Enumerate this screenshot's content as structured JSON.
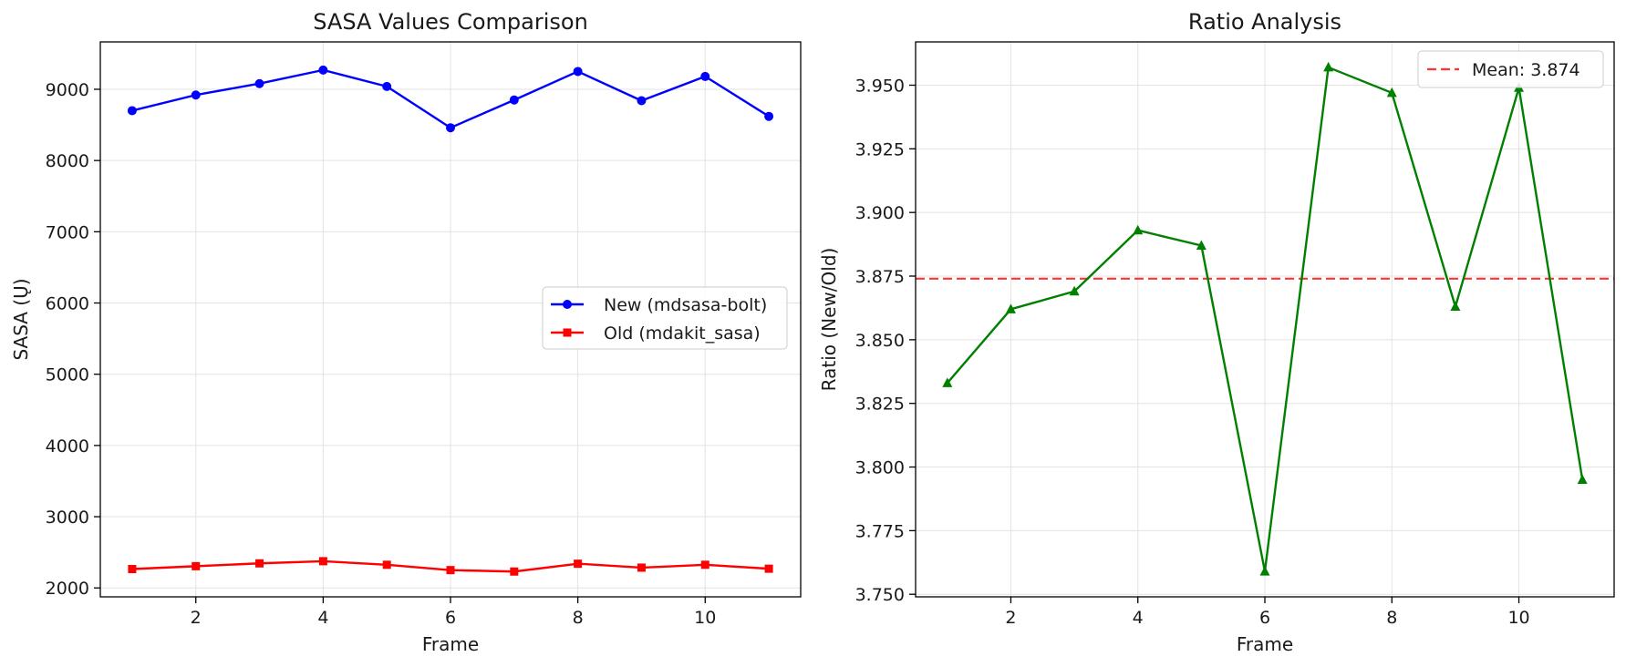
{
  "chart_data": [
    {
      "type": "line",
      "title": "SASA Values Comparison",
      "xlabel": "Frame",
      "ylabel": "SASA (Ų)",
      "xlim": [
        0.5,
        11.5
      ],
      "ylim": [
        1875,
        9665
      ],
      "xticks": [
        2,
        4,
        6,
        8,
        10
      ],
      "yticks": [
        2000,
        3000,
        4000,
        5000,
        6000,
        7000,
        8000,
        9000
      ],
      "grid": true,
      "legend": "center-right",
      "x": [
        1,
        2,
        3,
        4,
        5,
        6,
        7,
        8,
        9,
        10,
        11
      ],
      "series": [
        {
          "name": "New (mdsasa-bolt)",
          "color": "#0000ff",
          "marker": "circle",
          "values": [
            8700,
            8920,
            9080,
            9270,
            9040,
            8460,
            8850,
            9250,
            8840,
            9180,
            8620
          ]
        },
        {
          "name": "Old (mdakit_sasa)",
          "color": "#ff0000",
          "marker": "square",
          "values": [
            2265,
            2305,
            2345,
            2375,
            2325,
            2250,
            2230,
            2340,
            2285,
            2325,
            2270
          ]
        }
      ]
    },
    {
      "type": "line",
      "title": "Ratio Analysis",
      "xlabel": "Frame",
      "ylabel": "Ratio (New/Old)",
      "xlim": [
        0.5,
        11.5
      ],
      "ylim": [
        3.749,
        3.967
      ],
      "xticks": [
        2,
        4,
        6,
        8,
        10
      ],
      "yticks": [
        3.75,
        3.775,
        3.8,
        3.825,
        3.85,
        3.875,
        3.9,
        3.925,
        3.95
      ],
      "ytick_labels": [
        "3.750",
        "3.775",
        "3.800",
        "3.825",
        "3.850",
        "3.875",
        "3.900",
        "3.925",
        "3.950"
      ],
      "grid": true,
      "legend": "top-right",
      "x": [
        1,
        2,
        3,
        4,
        5,
        6,
        7,
        8,
        9,
        10,
        11
      ],
      "series": [
        {
          "name": "",
          "color": "#008000",
          "marker": "triangle",
          "values": [
            3.833,
            3.862,
            3.869,
            3.893,
            3.887,
            3.759,
            3.957,
            3.947,
            3.863,
            3.949,
            3.795
          ]
        }
      ],
      "hline": {
        "y": 3.874,
        "label": "Mean: 3.874",
        "color": "#ff0000",
        "style": "dashed"
      }
    }
  ]
}
